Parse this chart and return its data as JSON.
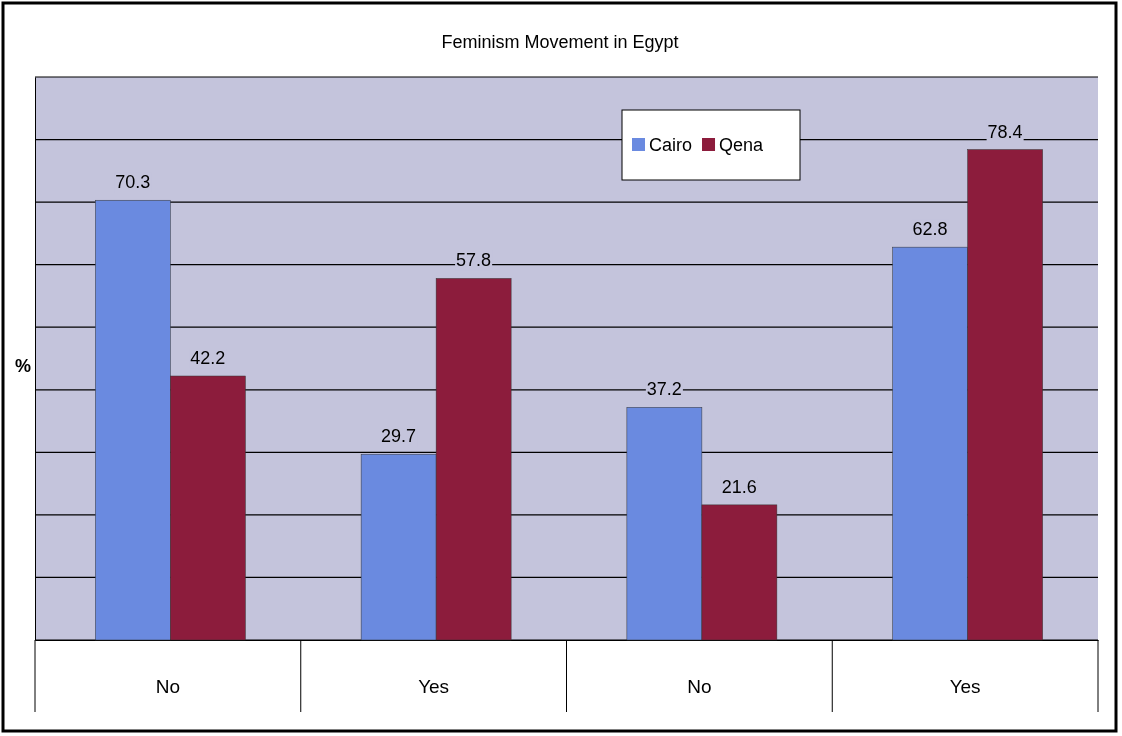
{
  "chart_data": {
    "type": "bar",
    "title": "Feminism Movement in Egypt",
    "ylabel": "%",
    "categories": [
      "No",
      "Yes",
      "No",
      "Yes"
    ],
    "series": [
      {
        "name": "Cairo",
        "color": "#6a8ae0",
        "values": [
          70.3,
          29.7,
          37.2,
          62.8
        ]
      },
      {
        "name": "Qena",
        "color": "#8c1c3c",
        "values": [
          42.2,
          57.8,
          21.6,
          78.4
        ]
      }
    ],
    "ylim": [
      0,
      90
    ],
    "yticks": [
      {
        "value": 0,
        "label": null
      },
      {
        "value": 10,
        "label": null
      },
      {
        "value": 20,
        "label": null
      },
      {
        "value": 30,
        "label": null
      },
      {
        "value": 40,
        "label": null
      },
      {
        "value": 50,
        "label": null
      },
      {
        "value": 60,
        "label": null
      },
      {
        "value": 70,
        "label": null
      },
      {
        "value": 80,
        "label": null
      },
      {
        "value": 90,
        "label": null
      }
    ],
    "grid": "y",
    "tick_labels": "x",
    "data_labels": true,
    "legend": "top right"
  }
}
